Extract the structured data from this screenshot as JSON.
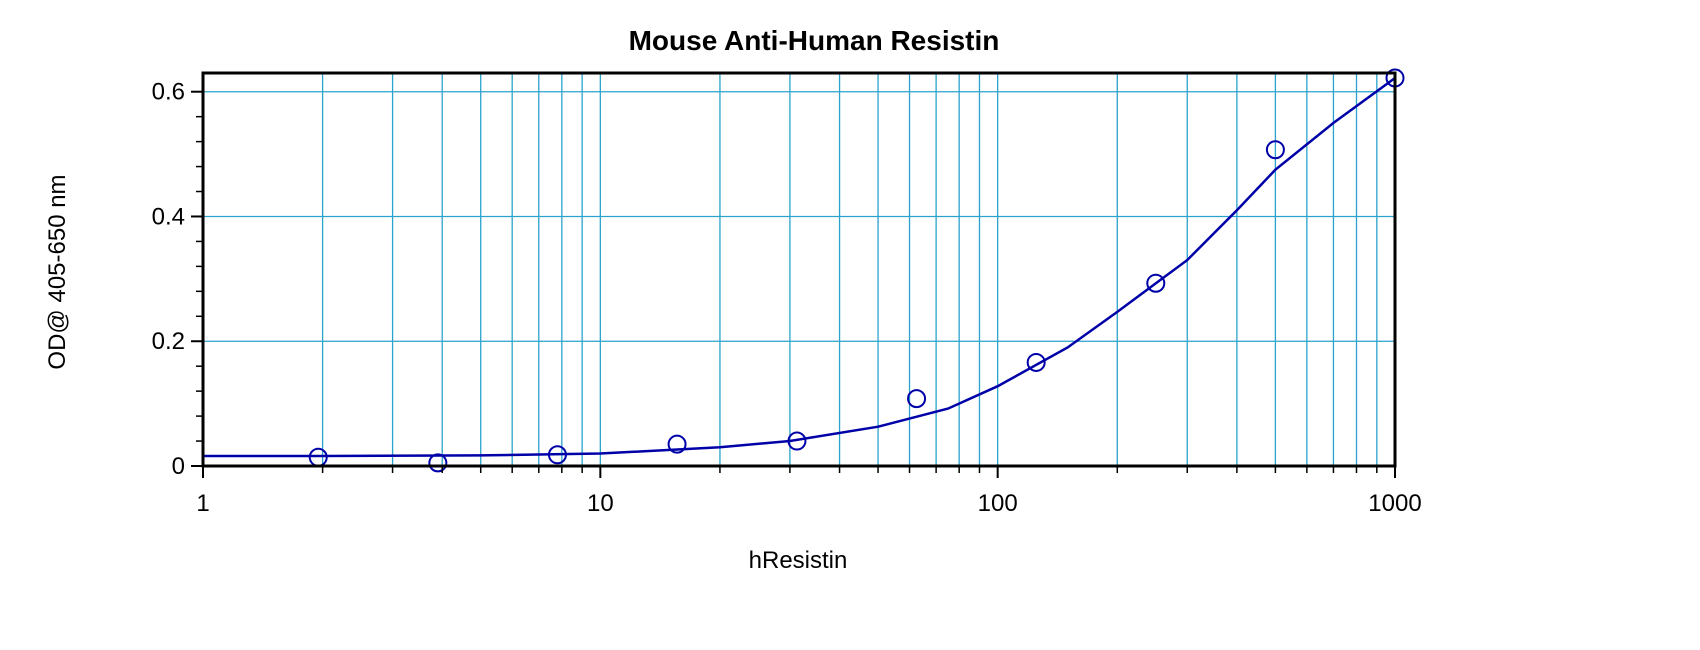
{
  "chart_data": {
    "type": "scatter",
    "title": "Mouse Anti-Human Resistin",
    "xlabel": "hResistin",
    "ylabel": "OD@ 405-650 nm",
    "x_scale": "log",
    "xlim": [
      1,
      1000
    ],
    "ylim": [
      0,
      0.63
    ],
    "x_ticks": [
      1,
      10,
      100,
      1000
    ],
    "x_tick_labels": [
      "1",
      "10",
      "100",
      "1000"
    ],
    "y_ticks": [
      0,
      0.2,
      0.4,
      0.6
    ],
    "y_tick_labels": [
      "0",
      "0.2",
      "0.4",
      "0.6"
    ],
    "grid": true,
    "colors": {
      "series": "#0000a8",
      "grid": "#29a3cc",
      "frame": "#000000"
    },
    "series": [
      {
        "type": "scatter",
        "marker": "open-circle",
        "x": [
          1.95,
          3.9,
          7.8,
          15.6,
          31.25,
          62.5,
          125,
          250,
          500,
          1000
        ],
        "y": [
          0.014,
          0.005,
          0.018,
          0.035,
          0.04,
          0.108,
          0.166,
          0.293,
          0.507,
          0.622
        ]
      },
      {
        "type": "line",
        "x": [
          1,
          2,
          5,
          10,
          20,
          30,
          50,
          75,
          100,
          150,
          200,
          300,
          400,
          500,
          700,
          1000
        ],
        "y": [
          0.016,
          0.016,
          0.017,
          0.02,
          0.03,
          0.04,
          0.063,
          0.092,
          0.128,
          0.19,
          0.247,
          0.33,
          0.41,
          0.475,
          0.55,
          0.622
        ]
      }
    ]
  }
}
